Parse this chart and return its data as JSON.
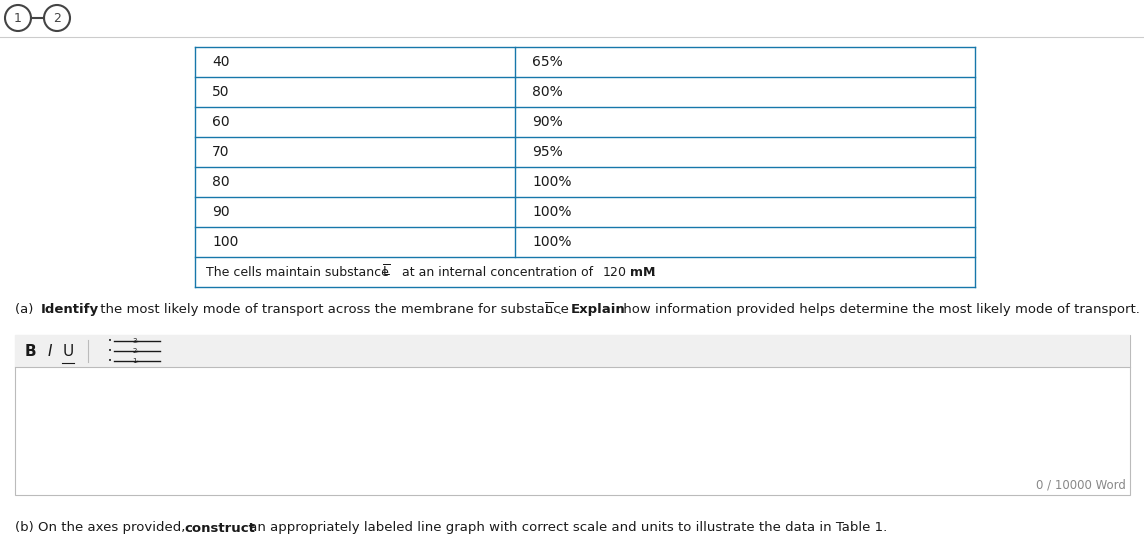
{
  "table_data": [
    [
      "40",
      "65%"
    ],
    [
      "50",
      "80%"
    ],
    [
      "60",
      "90%"
    ],
    [
      "70",
      "95%"
    ],
    [
      "80",
      "100%"
    ],
    [
      "90",
      "100%"
    ],
    [
      "100",
      "100%"
    ]
  ],
  "footer_text": "The cells maintain substance L at an internal concentration of 120 mM.",
  "table_border_color": "#1777aa",
  "bg_color": "#ffffff",
  "text_color": "#1a1a1a",
  "editor_bg": "#f0f0f0",
  "editor_border": "#bbbbbb",
  "circle_color": "#444444",
  "separator_color": "#cccccc",
  "word_count_color": "#888888",
  "word_count_text": "0 / 10000 Word",
  "fig_width": 11.44,
  "fig_height": 5.46,
  "dpi": 100
}
